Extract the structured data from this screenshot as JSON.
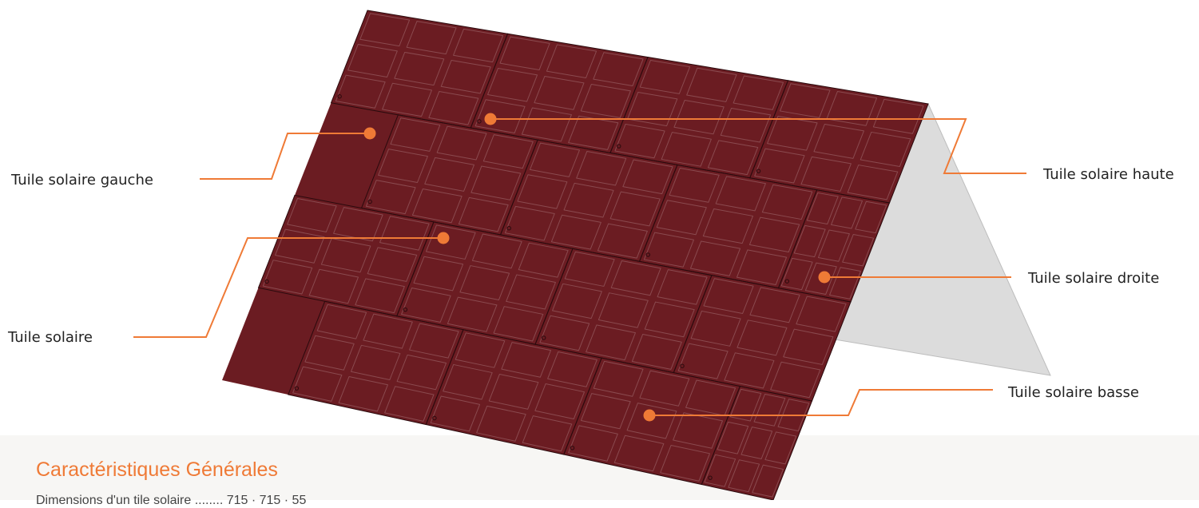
{
  "colors": {
    "roof": "#6b1c22",
    "gable": "#dcdcdc",
    "accent": "#ef7a36",
    "panel_stroke": "#8a4a4f",
    "band": "#f7f6f4"
  },
  "callouts": {
    "left": "Tuile solaire gauche",
    "center": "Tuile solaire",
    "top": "Tuile solaire haute",
    "right": "Tuile solaire droite",
    "bottom": "Tuile solaire basse"
  },
  "section": {
    "title": "Caractéristiques Générales",
    "partial_line": "Dimensions d'un tile solaire ........ 715 · 715 · 55"
  }
}
